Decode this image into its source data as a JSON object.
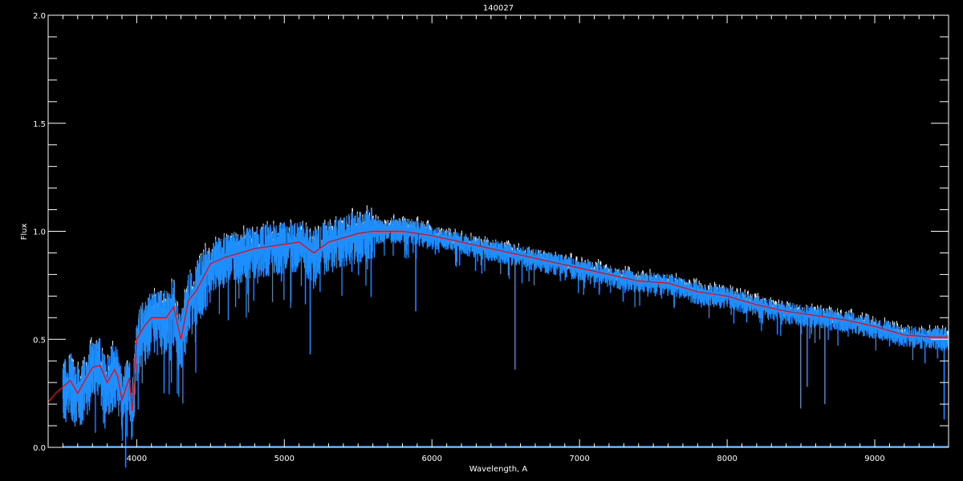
{
  "chart_data": {
    "type": "line",
    "title": "140027",
    "xlabel": "Wavelength, A",
    "ylabel": "Flux",
    "xlim": [
      3400,
      9500
    ],
    "ylim": [
      0.0,
      2.0
    ],
    "xticks": [
      "4000",
      "5000",
      "6000",
      "7000",
      "8000",
      "9000"
    ],
    "yticks": [
      "0.0",
      "0.5",
      "1.0",
      "1.5",
      "2.0"
    ],
    "grid": false,
    "background": "#000000",
    "series": [
      {
        "color": "#ff0000",
        "x": [
          3400,
          3450,
          3500,
          3550,
          3600,
          3650,
          3700,
          3750,
          3800,
          3850,
          3870,
          3900,
          3950,
          3970,
          4000,
          4050,
          4100,
          4200,
          4250,
          4300,
          4350,
          4400,
          4500,
          4600,
          4700,
          4800,
          4900,
          5000,
          5100,
          5200,
          5300,
          5400,
          5500,
          5600,
          5700,
          5800,
          5900,
          6000,
          6200,
          6400,
          6600,
          6800,
          7000,
          7200,
          7400,
          7600,
          7800,
          8000,
          8200,
          8400,
          8600,
          8800,
          9000,
          9200,
          9400,
          9500
        ],
        "y": [
          0.21,
          0.25,
          0.28,
          0.31,
          0.25,
          0.31,
          0.37,
          0.38,
          0.3,
          0.36,
          0.33,
          0.22,
          0.32,
          0.17,
          0.5,
          0.56,
          0.6,
          0.6,
          0.65,
          0.5,
          0.68,
          0.72,
          0.85,
          0.88,
          0.9,
          0.92,
          0.93,
          0.94,
          0.95,
          0.9,
          0.95,
          0.97,
          0.99,
          1.0,
          1.0,
          1.0,
          0.99,
          0.98,
          0.95,
          0.92,
          0.89,
          0.86,
          0.83,
          0.8,
          0.77,
          0.76,
          0.72,
          0.7,
          0.66,
          0.63,
          0.61,
          0.59,
          0.56,
          0.52,
          0.51,
          0.51
        ]
      },
      {
        "color": "#1e8fff",
        "x_range": [
          3500,
          9500
        ],
        "strong_lines": [
          {
            "x": 3934,
            "y": 0.05
          },
          {
            "x": 3968,
            "y": 0.07
          },
          {
            "x": 5175,
            "y": 0.43
          },
          {
            "x": 5890,
            "y": 0.63
          },
          {
            "x": 6563,
            "y": 0.36
          },
          {
            "x": 8498,
            "y": 0.18
          },
          {
            "x": 8542,
            "y": 0.28
          },
          {
            "x": 8662,
            "y": 0.2
          },
          {
            "x": 9470,
            "y": 0.13
          }
        ]
      },
      {
        "color": "#ffffff"
      }
    ]
  }
}
